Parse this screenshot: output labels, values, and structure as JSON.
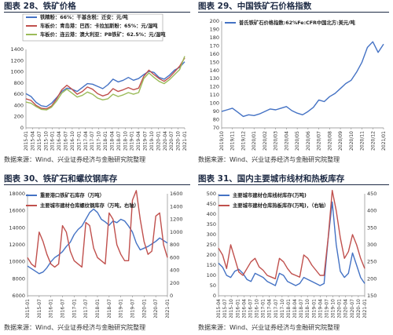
{
  "panels": [
    {
      "title": "图表 28、铁矿价格",
      "source": "数据来源：Wind、兴业证券经济与金融研究院整理"
    },
    {
      "title": "图表 29、中国铁矿石价格指数",
      "source": "数据来源：Wind、兴业证券经济与金融研究院整理"
    },
    {
      "title": "图表 30、铁矿石和螺纹钢库存",
      "source": "数据来源：Wind、兴业证券经济与金融研究院整理"
    },
    {
      "title": "图表 31、国内主要城市线材和热板库存",
      "source": "数据来源：Wind、兴业证券经济与金融研究院整理"
    }
  ],
  "chart_data": [
    {
      "type": "line",
      "series": [
        {
          "name": "铁精粉：66%：干基含税：迁安：元/吨",
          "color": "#4472C4",
          "values": [
            610,
            560,
            455,
            395,
            380,
            440,
            540,
            650,
            710,
            690,
            650,
            720,
            790,
            780,
            740,
            700,
            770,
            870,
            820,
            850,
            900,
            850,
            880,
            950,
            1010,
            990,
            900,
            870,
            940,
            1030,
            1080,
            1180
          ]
        },
        {
          "name": "车板价：青岛港：巴西：卡拉加斯粉：65%：元/湿吨",
          "color": "#C0504D",
          "values": [
            520,
            490,
            400,
            350,
            340,
            390,
            520,
            680,
            760,
            690,
            600,
            650,
            730,
            690,
            610,
            570,
            600,
            700,
            650,
            680,
            720,
            680,
            710,
            920,
            1030,
            950,
            880,
            830,
            900,
            1000,
            1100,
            1250
          ]
        },
        {
          "name": "车板价：连云港：澳大利亚：PB铁矿：62.5%：元/湿吨",
          "color": "#9BBB59",
          "values": [
            460,
            440,
            380,
            330,
            320,
            370,
            480,
            620,
            690,
            620,
            550,
            580,
            640,
            600,
            530,
            500,
            520,
            600,
            560,
            590,
            630,
            600,
            630,
            880,
            980,
            900,
            830,
            790,
            860,
            950,
            1040,
            1280
          ]
        }
      ],
      "ylim": [
        0,
        1400
      ],
      "y_ticks": [
        0,
        100,
        200,
        300,
        400,
        500,
        600,
        700,
        800,
        900,
        1000,
        1100,
        1200,
        1300,
        1400
      ],
      "x_ticks": [
        "2015-01",
        "2015-04",
        "2015-07",
        "2015-10",
        "2016-01",
        "2016-04",
        "2016-07",
        "2016-10",
        "2017-01",
        "2017-04",
        "2017-07",
        "2017-10",
        "2018-01",
        "2018-04",
        "2018-07",
        "2018-10",
        "2019-01",
        "2019-04",
        "2019-07",
        "2019-10",
        "2020-01",
        "2020-04",
        "2020-07",
        "2020-10",
        "2021-01"
      ]
    },
    {
      "type": "line",
      "series": [
        {
          "name": "普氏铁矿石价格指数:62%Fe:CFR中国北方:美元/吨",
          "color": "#4472C4",
          "values": [
            90,
            92,
            94,
            89,
            84,
            86,
            85,
            87,
            90,
            93,
            92,
            94,
            96,
            91,
            88,
            86,
            90,
            95,
            104,
            102,
            108,
            112,
            118,
            124,
            128,
            138,
            150,
            168,
            175,
            162,
            172
          ]
        }
      ],
      "ylim": [
        70,
        200
      ],
      "y_ticks": [
        70,
        80,
        90,
        100,
        110,
        120,
        130,
        140,
        150,
        160,
        170,
        180,
        190,
        200
      ],
      "x_ticks": [
        "2019/10",
        "2019/11",
        "2019/12",
        "2020/01",
        "2020/02",
        "2020/03",
        "2020/04",
        "2020/05",
        "2020/06",
        "2020/07",
        "2020/08",
        "2020/09",
        "2020/10",
        "2020/11",
        "2020/12",
        "2021/01"
      ]
    },
    {
      "type": "line",
      "series": [
        {
          "name": "重要港口铁矿石库存（万吨）",
          "color": "#4472C4",
          "axis": "left",
          "values": [
            9500,
            9200,
            8900,
            8600,
            8800,
            9300,
            10000,
            10500,
            10800,
            11200,
            11800,
            12300,
            13200,
            13800,
            14200,
            15000,
            15800,
            16200,
            15800,
            15000,
            14700,
            14300,
            14800,
            14600,
            15000,
            14800,
            14200,
            13500,
            12200,
            11400,
            11600,
            11800,
            12100,
            12400,
            12800,
            12500,
            12200
          ]
        },
        {
          "name": "主要城市建材仓库螺纹钢库存（万吨，右轴）",
          "color": "#C0504D",
          "axis": "right",
          "values": [
            600,
            500,
            450,
            1000,
            850,
            650,
            500,
            450,
            500,
            1100,
            1000,
            700,
            550,
            500,
            450,
            1150,
            1100,
            750,
            600,
            550,
            500,
            1300,
            1200,
            800,
            650,
            550,
            550,
            1500,
            1650,
            1200,
            850,
            650,
            700,
            1250,
            1300,
            800,
            600
          ]
        }
      ],
      "ylim": [
        6000,
        18000
      ],
      "y2lim": [
        0,
        1600
      ],
      "y_ticks": [
        6000,
        8000,
        10000,
        12000,
        14000,
        16000,
        18000
      ],
      "y2_ticks": [
        0,
        200,
        400,
        600,
        800,
        1000,
        1200,
        1400,
        1600
      ],
      "x_ticks": [
        "2015-01",
        "2015-07",
        "2016-01",
        "2016-07",
        "2017-01",
        "2017-07",
        "2018-01",
        "2018-07",
        "2019-01",
        "2019-07",
        "2020-01",
        "2020-07",
        "2021-01"
      ]
    },
    {
      "type": "line",
      "series": [
        {
          "name": "主要城市建材仓库线材库存(万吨)",
          "color": "#4472C4",
          "axis": "left",
          "values": [
            160,
            140,
            100,
            90,
            120,
            130,
            110,
            80,
            70,
            110,
            100,
            90,
            70,
            60,
            50,
            110,
            100,
            70,
            60,
            50,
            60,
            90,
            80,
            70,
            60,
            50,
            60,
            280,
            460,
            250,
            120,
            90,
            110,
            210,
            150,
            90,
            60
          ]
        },
        {
          "name": "主要城市建材仓库热板库存(万吨)，（右轴）",
          "color": "#C0504D",
          "axis": "right",
          "values": [
            290,
            270,
            230,
            300,
            260,
            220,
            210,
            230,
            250,
            260,
            235,
            225,
            210,
            205,
            200,
            260,
            250,
            230,
            215,
            210,
            205,
            270,
            260,
            240,
            225,
            210,
            210,
            320,
            460,
            400,
            320,
            260,
            280,
            330,
            300,
            260,
            230
          ]
        }
      ],
      "ylim": [
        0,
        500
      ],
      "y2lim": [
        150,
        450
      ],
      "y_ticks": [
        0,
        50,
        100,
        150,
        200,
        250,
        300,
        350,
        400,
        450,
        500
      ],
      "y2_ticks": [
        150,
        200,
        250,
        300,
        350,
        400,
        450
      ],
      "x_ticks": [
        "2015-04",
        "2015-07",
        "2015-10",
        "2016-01",
        "2016-04",
        "2016-07",
        "2016-10",
        "2017-01",
        "2017-04",
        "2017-07",
        "2017-10",
        "2018-01",
        "2018-04",
        "2018-07",
        "2018-10",
        "2019-01",
        "2019-04",
        "2019-07",
        "2019-10",
        "2020-01",
        "2020-04",
        "2020-07",
        "2020-10",
        "2021-01"
      ]
    }
  ]
}
